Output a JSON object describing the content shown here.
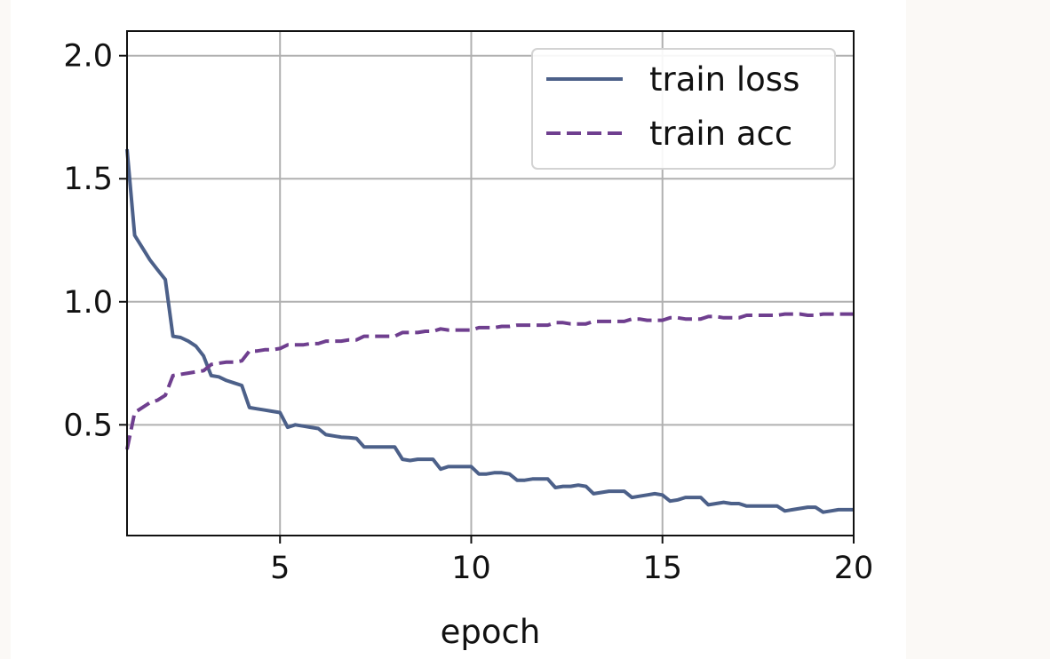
{
  "chart_data": {
    "type": "line",
    "title": "",
    "xlabel": "epoch",
    "ylabel": "",
    "xlim": [
      1,
      20
    ],
    "ylim": [
      0.05,
      2.1
    ],
    "xticks": [
      5,
      10,
      15,
      20
    ],
    "xtick_labels": [
      "5",
      "10",
      "15",
      "20"
    ],
    "yticks": [
      0.5,
      1.0,
      1.5,
      2.0
    ],
    "ytick_labels": [
      "0.5",
      "1.0",
      "1.5",
      "2.0"
    ],
    "grid": true,
    "legend_position": "top-right",
    "series": [
      {
        "name": "train loss",
        "style": "solid",
        "color": "#4c6089",
        "x": [
          1.0,
          1.2,
          1.4,
          1.6,
          1.8,
          2.0,
          2.2,
          2.4,
          2.6,
          2.8,
          3.0,
          3.2,
          3.4,
          3.6,
          3.8,
          4.0,
          4.2,
          4.4,
          4.6,
          4.8,
          5.0,
          5.2,
          5.4,
          5.6,
          5.8,
          6.0,
          6.2,
          6.4,
          6.6,
          6.8,
          7.0,
          7.2,
          7.4,
          7.6,
          7.8,
          8.0,
          8.2,
          8.4,
          8.6,
          8.8,
          9.0,
          9.2,
          9.4,
          9.6,
          9.8,
          10.0,
          10.2,
          10.4,
          10.6,
          10.8,
          11.0,
          11.2,
          11.4,
          11.6,
          11.8,
          12.0,
          12.2,
          12.4,
          12.6,
          12.8,
          13.0,
          13.2,
          13.4,
          13.6,
          13.8,
          14.0,
          14.2,
          14.4,
          14.6,
          14.8,
          15.0,
          15.2,
          15.4,
          15.6,
          15.8,
          16.0,
          16.2,
          16.4,
          16.6,
          16.8,
          17.0,
          17.2,
          17.4,
          17.6,
          17.8,
          18.0,
          18.2,
          18.4,
          18.6,
          18.8,
          19.0,
          19.2,
          19.4,
          19.6,
          19.8,
          20.0
        ],
        "values": [
          1.62,
          1.27,
          1.22,
          1.17,
          1.13,
          1.09,
          0.86,
          0.855,
          0.84,
          0.82,
          0.78,
          0.7,
          0.695,
          0.68,
          0.67,
          0.66,
          0.57,
          0.565,
          0.56,
          0.555,
          0.55,
          0.49,
          0.5,
          0.495,
          0.49,
          0.485,
          0.46,
          0.455,
          0.45,
          0.448,
          0.445,
          0.41,
          0.41,
          0.41,
          0.41,
          0.41,
          0.36,
          0.355,
          0.36,
          0.36,
          0.36,
          0.32,
          0.33,
          0.33,
          0.33,
          0.33,
          0.3,
          0.3,
          0.305,
          0.305,
          0.3,
          0.275,
          0.275,
          0.28,
          0.28,
          0.28,
          0.245,
          0.25,
          0.25,
          0.255,
          0.25,
          0.22,
          0.225,
          0.23,
          0.23,
          0.23,
          0.205,
          0.21,
          0.215,
          0.22,
          0.215,
          0.19,
          0.195,
          0.205,
          0.205,
          0.205,
          0.175,
          0.18,
          0.185,
          0.18,
          0.18,
          0.17,
          0.17,
          0.17,
          0.17,
          0.17,
          0.15,
          0.155,
          0.16,
          0.165,
          0.165,
          0.145,
          0.15,
          0.155,
          0.155,
          0.155
        ]
      },
      {
        "name": "train acc",
        "style": "dashed",
        "color": "#6f3f8f",
        "x": [
          1.0,
          1.2,
          1.4,
          1.6,
          1.8,
          2.0,
          2.2,
          2.4,
          2.6,
          2.8,
          3.0,
          3.2,
          3.4,
          3.6,
          3.8,
          4.0,
          4.2,
          4.4,
          4.6,
          4.8,
          5.0,
          5.2,
          5.4,
          5.6,
          5.8,
          6.0,
          6.2,
          6.4,
          6.6,
          6.8,
          7.0,
          7.2,
          7.4,
          7.6,
          7.8,
          8.0,
          8.2,
          8.4,
          8.6,
          8.8,
          9.0,
          9.2,
          9.4,
          9.6,
          9.8,
          10.0,
          10.2,
          10.4,
          10.6,
          10.8,
          11.0,
          11.2,
          11.4,
          11.6,
          11.8,
          12.0,
          12.2,
          12.4,
          12.6,
          12.8,
          13.0,
          13.2,
          13.4,
          13.6,
          13.8,
          14.0,
          14.2,
          14.4,
          14.6,
          14.8,
          15.0,
          15.2,
          15.4,
          15.6,
          15.8,
          16.0,
          16.2,
          16.4,
          16.6,
          16.8,
          17.0,
          17.2,
          17.4,
          17.6,
          17.8,
          18.0,
          18.2,
          18.4,
          18.6,
          18.8,
          19.0,
          19.2,
          19.4,
          19.6,
          19.8,
          20.0
        ],
        "values": [
          0.4,
          0.55,
          0.57,
          0.59,
          0.6,
          0.62,
          0.7,
          0.705,
          0.71,
          0.715,
          0.72,
          0.745,
          0.75,
          0.755,
          0.755,
          0.76,
          0.8,
          0.8,
          0.805,
          0.805,
          0.81,
          0.825,
          0.825,
          0.825,
          0.83,
          0.83,
          0.84,
          0.84,
          0.84,
          0.845,
          0.845,
          0.86,
          0.86,
          0.86,
          0.86,
          0.86,
          0.875,
          0.875,
          0.875,
          0.88,
          0.88,
          0.89,
          0.885,
          0.885,
          0.885,
          0.885,
          0.895,
          0.895,
          0.895,
          0.9,
          0.9,
          0.905,
          0.905,
          0.905,
          0.905,
          0.905,
          0.915,
          0.915,
          0.91,
          0.91,
          0.91,
          0.92,
          0.92,
          0.92,
          0.92,
          0.92,
          0.93,
          0.93,
          0.925,
          0.925,
          0.925,
          0.935,
          0.935,
          0.93,
          0.93,
          0.93,
          0.94,
          0.94,
          0.935,
          0.935,
          0.935,
          0.945,
          0.945,
          0.945,
          0.945,
          0.945,
          0.95,
          0.95,
          0.95,
          0.945,
          0.945,
          0.95,
          0.95,
          0.95,
          0.95,
          0.95
        ]
      }
    ]
  }
}
